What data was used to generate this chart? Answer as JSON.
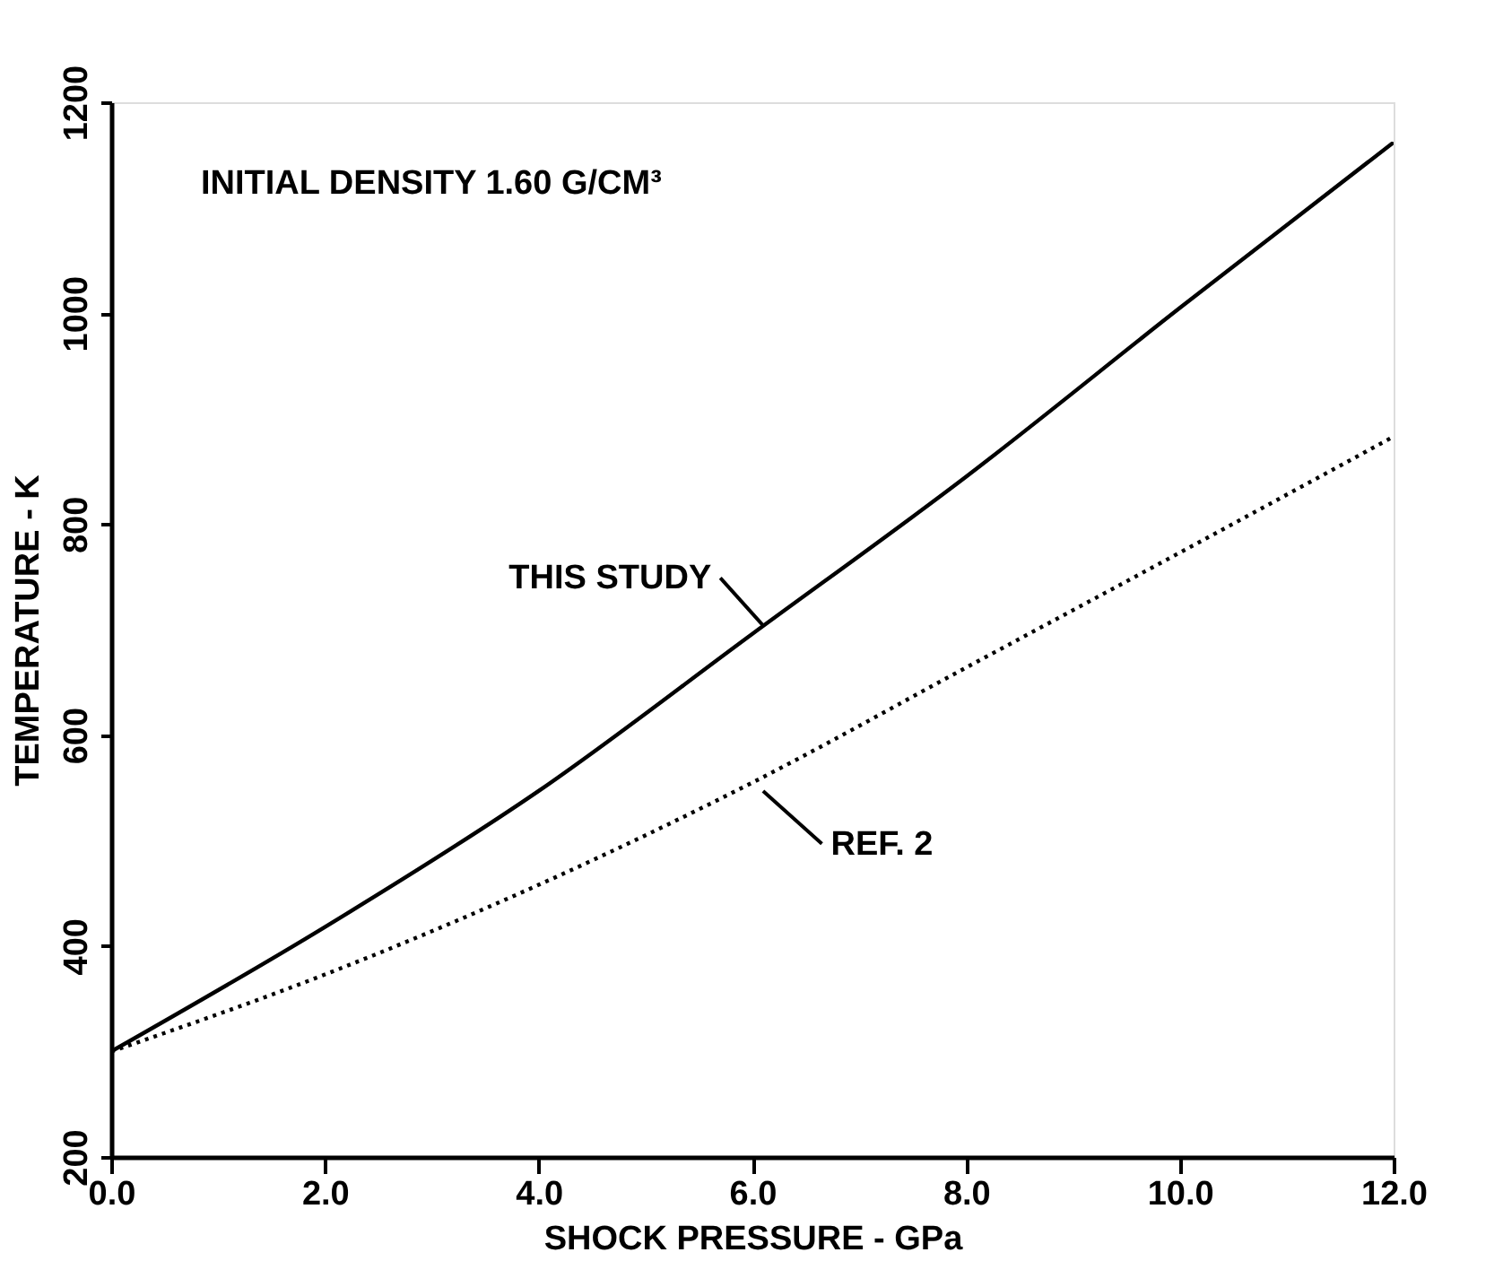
{
  "chart_data": {
    "type": "line",
    "xlabel": "SHOCK PRESSURE - GPa",
    "ylabel": "TEMPERATURE - K",
    "annotations": [
      "INITIAL DENSITY 1.60 G/CM³"
    ],
    "x": [
      0,
      2,
      4,
      6,
      8,
      10,
      12
    ],
    "series": [
      {
        "name": "THIS STUDY",
        "color": "#000000",
        "line_style": "solid",
        "values": [
          300,
          418,
          547,
          696,
          845,
          1005,
          1162
        ]
      },
      {
        "name": "REF. 2",
        "color": "#000000",
        "line_style": "dotted",
        "values": [
          300,
          373,
          458,
          555,
          664,
          773,
          883
        ]
      }
    ],
    "xlim": [
      0,
      12
    ],
    "ylim": [
      200,
      1200
    ],
    "xticks": [
      {
        "value": 0,
        "label": "0.0"
      },
      {
        "value": 2,
        "label": "2.0"
      },
      {
        "value": 4,
        "label": "4.0"
      },
      {
        "value": 6,
        "label": "6.0"
      },
      {
        "value": 8,
        "label": "8.0"
      },
      {
        "value": 10,
        "label": "10.0"
      },
      {
        "value": 12,
        "label": "12.0"
      }
    ],
    "yticks": [
      200,
      400,
      600,
      800,
      1000,
      1200
    ],
    "marker": "none"
  }
}
